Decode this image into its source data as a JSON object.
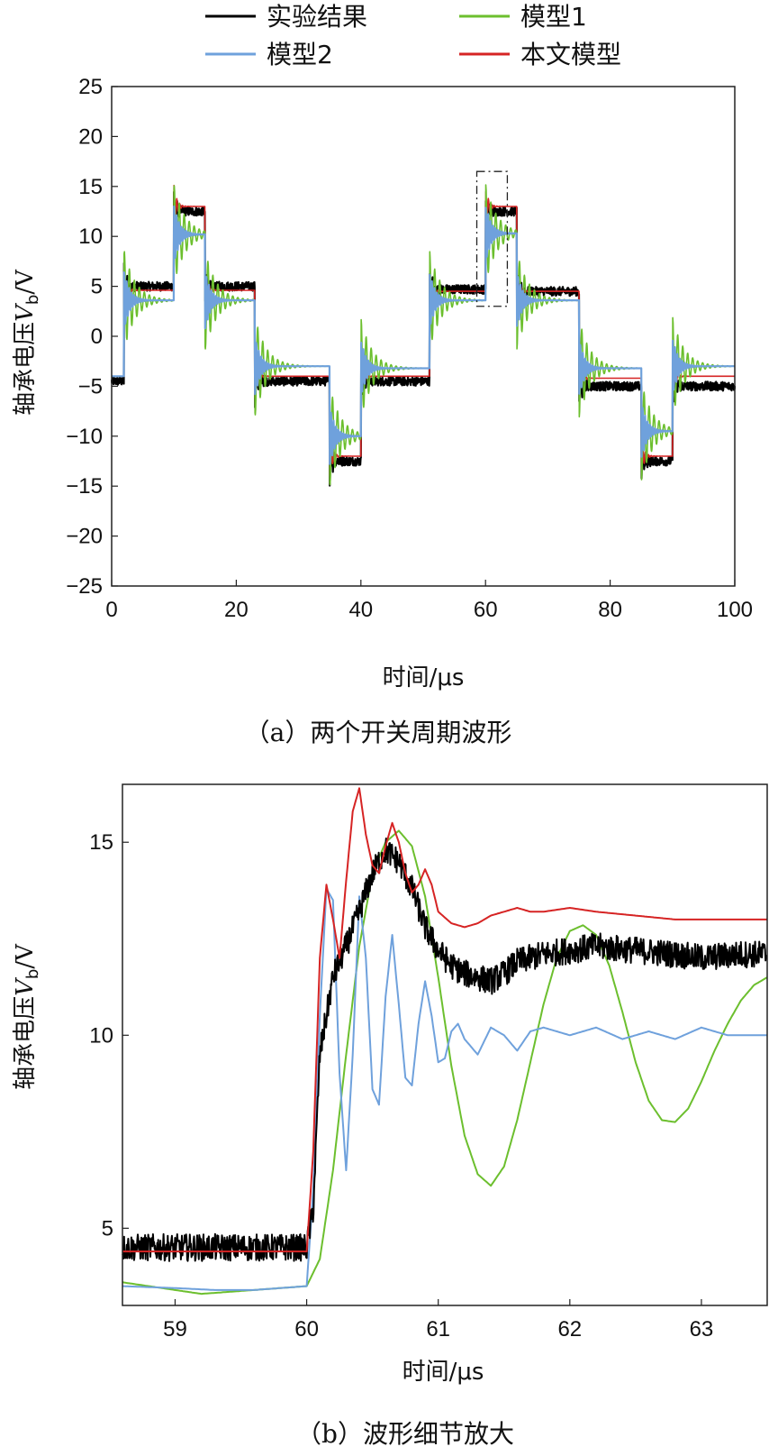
{
  "legend": [
    {
      "label": "实验结果",
      "color": "#000000"
    },
    {
      "label": "模型1",
      "color": "#6cbf2e"
    },
    {
      "label": "模型2",
      "color": "#6fa1dc"
    },
    {
      "label": "本文模型",
      "color": "#d62424"
    }
  ],
  "chart_data": [
    {
      "type": "line",
      "caption": "（a）两个开关周期波形",
      "xlabel": "时间/μs",
      "ylabel_main": "轴承电压",
      "ylabel_var": "V",
      "ylabel_sub": "b",
      "ylabel_unit": "/V",
      "xlim": [
        0,
        100
      ],
      "ylim": [
        -25,
        25
      ],
      "xticks": [
        0,
        20,
        40,
        60,
        80,
        100
      ],
      "yticks": [
        -25,
        -20,
        -15,
        -10,
        -5,
        0,
        5,
        10,
        15,
        20,
        25
      ],
      "zoom_box": {
        "x": [
          58.6,
          63.5
        ],
        "y": [
          3.0,
          16.5
        ]
      },
      "step_times": [
        0,
        2,
        10,
        15,
        23,
        35,
        40,
        51,
        60,
        65,
        75,
        85,
        90,
        100
      ],
      "series": [
        {
          "name": "实验结果",
          "color": "#000000",
          "levels": [
            -4.5,
            5.0,
            12.5,
            5.0,
            -4.5,
            -12.5,
            -4.5,
            4.7,
            12.5,
            4.5,
            -5.0,
            -12.5,
            -5.0
          ],
          "osc_amp": 0.0,
          "noise": 0.45
        },
        {
          "name": "模型1",
          "color": "#6cbf2e",
          "levels": [
            -4.0,
            3.6,
            10.2,
            3.6,
            -3.0,
            -10.0,
            -3.2,
            3.6,
            10.3,
            3.6,
            -3.2,
            -9.5,
            -3.0
          ],
          "osc_amp": 5.0,
          "noise": 0.0
        },
        {
          "name": "模型2",
          "color": "#6fa1dc",
          "levels": [
            -4.0,
            3.6,
            10.2,
            3.6,
            -3.0,
            -10.0,
            -3.2,
            3.6,
            10.3,
            3.6,
            -3.2,
            -9.5,
            -3.0
          ],
          "osc_amp": 3.0,
          "noise": 0.0
        },
        {
          "name": "本文模型",
          "color": "#d62424",
          "levels": [
            -4.0,
            4.6,
            13.0,
            4.6,
            -4.0,
            -12.0,
            -4.0,
            4.5,
            13.0,
            4.5,
            -4.2,
            -12.0,
            -4.0
          ],
          "osc_amp": 1.5,
          "noise": 0.0
        }
      ]
    },
    {
      "type": "line",
      "caption": "（b）波形细节放大",
      "xlabel": "时间/μs",
      "ylabel_main": "轴承电压",
      "ylabel_var": "V",
      "ylabel_sub": "b",
      "ylabel_unit": "/V",
      "xlim": [
        58.6,
        63.5
      ],
      "ylim": [
        3.0,
        16.5
      ],
      "xticks": [
        59,
        60,
        61,
        62,
        63
      ],
      "yticks": [
        5,
        10,
        15
      ],
      "series": [
        {
          "name": "实验结果",
          "color": "#000000",
          "x": [
            58.6,
            59.0,
            59.5,
            60.0,
            60.05,
            60.1,
            60.15,
            60.2,
            60.3,
            60.4,
            60.5,
            60.6,
            60.7,
            60.8,
            60.9,
            61.0,
            61.1,
            61.2,
            61.3,
            61.4,
            61.5,
            61.6,
            61.8,
            62.0,
            62.2,
            62.5,
            62.8,
            63.0,
            63.3,
            63.5
          ],
          "y": [
            4.5,
            4.5,
            4.5,
            4.5,
            5.5,
            9.5,
            10.5,
            11.5,
            12.3,
            13.2,
            14.2,
            14.8,
            14.5,
            13.8,
            12.8,
            12.2,
            11.8,
            11.6,
            11.5,
            11.4,
            11.6,
            11.9,
            12.1,
            12.2,
            12.3,
            12.2,
            12.1,
            12.0,
            12.1,
            12.1
          ],
          "noise": 0.35
        },
        {
          "name": "模型1",
          "color": "#6cbf2e",
          "x": [
            58.6,
            58.8,
            59.0,
            59.2,
            59.4,
            59.6,
            59.8,
            60.0,
            60.1,
            60.2,
            60.3,
            60.4,
            60.5,
            60.6,
            60.7,
            60.8,
            60.9,
            61.0,
            61.1,
            61.2,
            61.3,
            61.4,
            61.5,
            61.6,
            61.7,
            61.8,
            61.9,
            62.0,
            62.1,
            62.2,
            62.3,
            62.4,
            62.5,
            62.6,
            62.7,
            62.8,
            62.9,
            63.0,
            63.1,
            63.2,
            63.3,
            63.4,
            63.5
          ],
          "y": [
            3.6,
            3.5,
            3.4,
            3.3,
            3.35,
            3.4,
            3.45,
            3.5,
            4.2,
            6.5,
            9.5,
            12.3,
            14.2,
            15.0,
            15.3,
            14.9,
            13.6,
            11.5,
            9.2,
            7.4,
            6.4,
            6.1,
            6.6,
            7.8,
            9.3,
            10.8,
            12.0,
            12.7,
            12.85,
            12.6,
            11.8,
            10.6,
            9.3,
            8.3,
            7.8,
            7.75,
            8.1,
            8.8,
            9.6,
            10.3,
            10.9,
            11.3,
            11.5
          ]
        },
        {
          "name": "模型2",
          "color": "#6fa1dc",
          "x": [
            58.6,
            59.0,
            59.3,
            59.6,
            60.0,
            60.05,
            60.1,
            60.15,
            60.2,
            60.25,
            60.3,
            60.35,
            60.4,
            60.45,
            60.5,
            60.55,
            60.6,
            60.65,
            60.7,
            60.75,
            60.8,
            60.85,
            60.9,
            60.95,
            61.0,
            61.05,
            61.1,
            61.15,
            61.2,
            61.3,
            61.4,
            61.5,
            61.6,
            61.7,
            61.8,
            62.0,
            62.2,
            62.4,
            62.6,
            62.8,
            63.0,
            63.2,
            63.5
          ],
          "y": [
            3.5,
            3.45,
            3.4,
            3.4,
            3.5,
            6.0,
            10.5,
            13.8,
            13.5,
            9.0,
            6.5,
            9.5,
            13.6,
            12.0,
            8.6,
            8.2,
            11.0,
            12.6,
            10.8,
            8.9,
            8.7,
            10.3,
            11.4,
            10.5,
            9.3,
            9.4,
            10.1,
            10.3,
            9.9,
            9.5,
            10.2,
            10.0,
            9.6,
            10.1,
            10.2,
            10.0,
            10.2,
            9.9,
            10.1,
            9.9,
            10.2,
            10.0,
            10.0
          ]
        },
        {
          "name": "本文模型",
          "color": "#d62424",
          "x": [
            58.6,
            59.0,
            59.5,
            60.0,
            60.05,
            60.1,
            60.15,
            60.2,
            60.25,
            60.3,
            60.35,
            60.4,
            60.45,
            60.5,
            60.55,
            60.6,
            60.65,
            60.7,
            60.75,
            60.8,
            60.85,
            60.9,
            60.95,
            61.0,
            61.1,
            61.2,
            61.3,
            61.4,
            61.5,
            61.6,
            61.7,
            61.8,
            62.0,
            62.2,
            62.5,
            62.8,
            63.0,
            63.3,
            63.5
          ],
          "y": [
            4.4,
            4.4,
            4.4,
            4.4,
            7.0,
            12.0,
            13.9,
            13.0,
            12.0,
            14.0,
            15.8,
            16.4,
            15.2,
            14.4,
            14.2,
            14.9,
            15.5,
            15.0,
            14.2,
            13.7,
            13.9,
            14.3,
            13.9,
            13.2,
            12.9,
            12.8,
            12.9,
            13.1,
            13.2,
            13.3,
            13.2,
            13.2,
            13.3,
            13.2,
            13.1,
            13.0,
            13.0,
            13.0,
            13.0
          ]
        }
      ]
    }
  ]
}
